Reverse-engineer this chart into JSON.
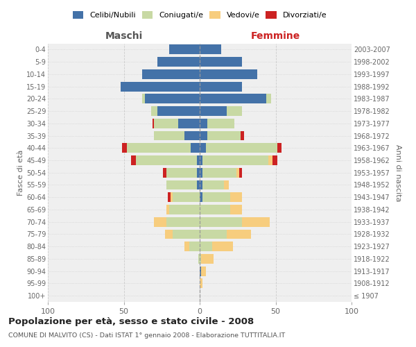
{
  "age_groups": [
    "100+",
    "95-99",
    "90-94",
    "85-89",
    "80-84",
    "75-79",
    "70-74",
    "65-69",
    "60-64",
    "55-59",
    "50-54",
    "45-49",
    "40-44",
    "35-39",
    "30-34",
    "25-29",
    "20-24",
    "15-19",
    "10-14",
    "5-9",
    "0-4"
  ],
  "birth_years": [
    "≤ 1907",
    "1908-1912",
    "1913-1917",
    "1918-1922",
    "1923-1927",
    "1928-1932",
    "1933-1937",
    "1938-1942",
    "1943-1947",
    "1948-1952",
    "1953-1957",
    "1958-1962",
    "1963-1967",
    "1968-1972",
    "1973-1977",
    "1978-1982",
    "1983-1987",
    "1988-1992",
    "1993-1997",
    "1998-2002",
    "2003-2007"
  ],
  "maschi_celibi": [
    0,
    0,
    0,
    0,
    0,
    0,
    0,
    0,
    0,
    2,
    2,
    2,
    6,
    10,
    14,
    28,
    36,
    52,
    38,
    28,
    20
  ],
  "maschi_coniugati": [
    0,
    0,
    0,
    1,
    7,
    18,
    22,
    20,
    18,
    20,
    20,
    40,
    42,
    20,
    16,
    4,
    2,
    0,
    0,
    0,
    0
  ],
  "maschi_vedovi": [
    0,
    0,
    0,
    0,
    3,
    5,
    8,
    2,
    1,
    0,
    0,
    0,
    0,
    0,
    0,
    0,
    0,
    0,
    0,
    0,
    0
  ],
  "maschi_divorziati": [
    0,
    0,
    0,
    0,
    0,
    0,
    0,
    0,
    2,
    0,
    2,
    3,
    3,
    0,
    1,
    0,
    0,
    0,
    0,
    0,
    0
  ],
  "femmine_nubili": [
    0,
    0,
    1,
    0,
    0,
    0,
    0,
    0,
    2,
    2,
    2,
    2,
    4,
    5,
    5,
    18,
    44,
    28,
    38,
    28,
    14
  ],
  "femmine_coniugate": [
    0,
    0,
    0,
    1,
    8,
    18,
    28,
    20,
    18,
    14,
    22,
    43,
    47,
    22,
    18,
    10,
    3,
    0,
    0,
    0,
    0
  ],
  "femmine_vedove": [
    0,
    2,
    3,
    8,
    14,
    16,
    18,
    8,
    8,
    3,
    2,
    3,
    0,
    0,
    0,
    0,
    0,
    0,
    0,
    0,
    0
  ],
  "femmine_divorziate": [
    0,
    0,
    0,
    0,
    0,
    0,
    0,
    0,
    0,
    0,
    2,
    3,
    3,
    2,
    0,
    0,
    0,
    0,
    0,
    0,
    0
  ],
  "color_celibi": "#4472a8",
  "color_coniugati": "#c8d9a4",
  "color_vedovi": "#f7cd7e",
  "color_divorziati": "#cc2222",
  "title": "Popolazione per età, sesso e stato civile - 2008",
  "subtitle": "COMUNE DI MALVITO (CS) - Dati ISTAT 1° gennaio 2008 - Elaborazione TUTTITALIA.IT",
  "label_maschi": "Maschi",
  "label_femmine": "Femmine",
  "ylabel_left": "Fasce di età",
  "ylabel_right": "Anni di nascita",
  "legend_labels": [
    "Celibi/Nubili",
    "Coniugati/e",
    "Vedovi/e",
    "Divorziati/e"
  ],
  "xlim": 100,
  "bg_color": "#ffffff",
  "plot_bg": "#efefef",
  "grid_color": "#cccccc"
}
